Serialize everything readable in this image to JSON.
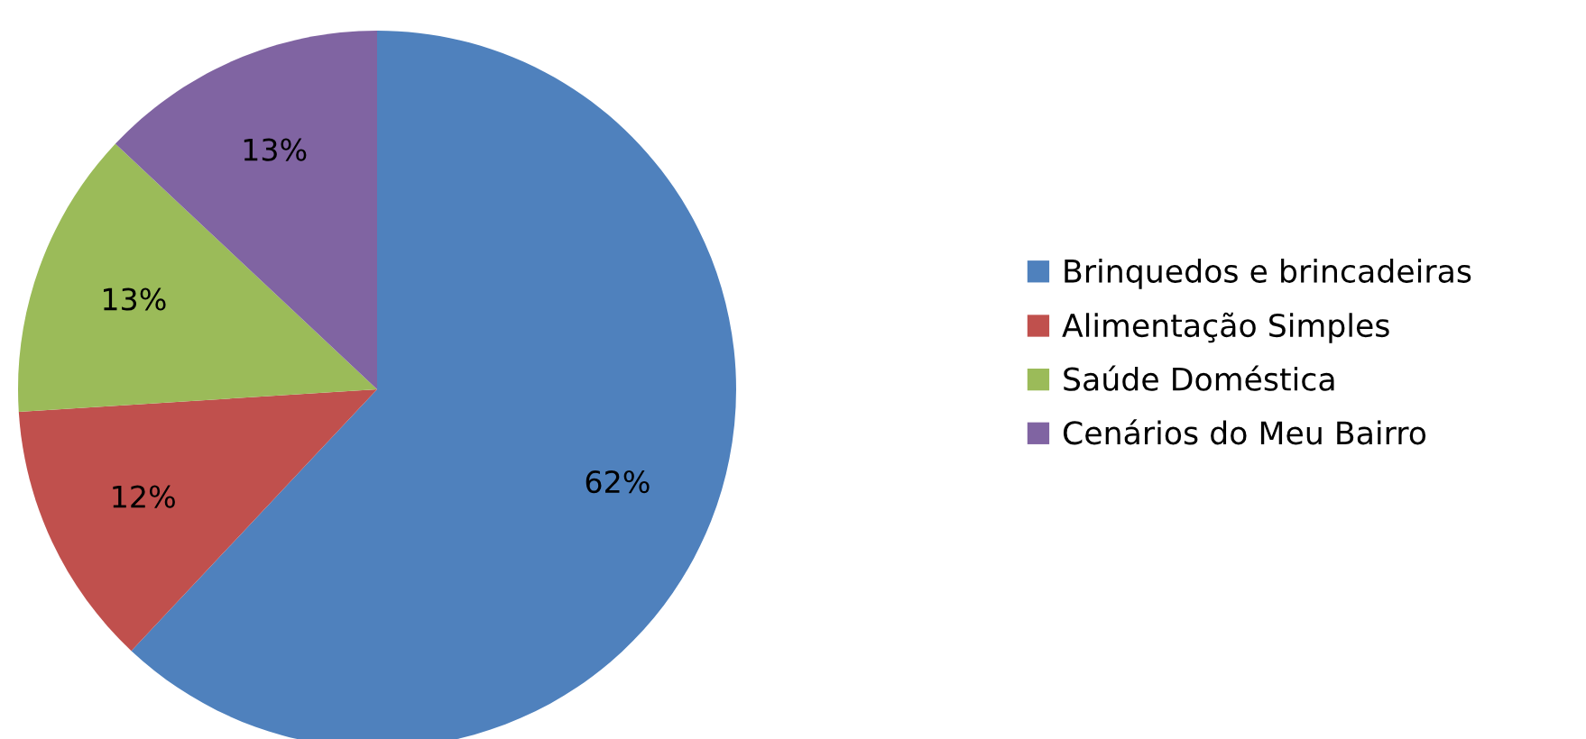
{
  "chart_data": {
    "type": "pie",
    "categories": [
      "Brinquedos e brincadeiras",
      "Alimentação Simples",
      "Saúde Doméstica",
      "Cenários do Meu Bairro"
    ],
    "values": [
      62,
      12,
      13,
      13
    ],
    "value_labels": [
      "62%",
      "12%",
      "13%",
      "13%"
    ],
    "colors": [
      "#4f81bd",
      "#c0504d",
      "#9bbb59",
      "#8064a2"
    ],
    "legend": "right"
  }
}
